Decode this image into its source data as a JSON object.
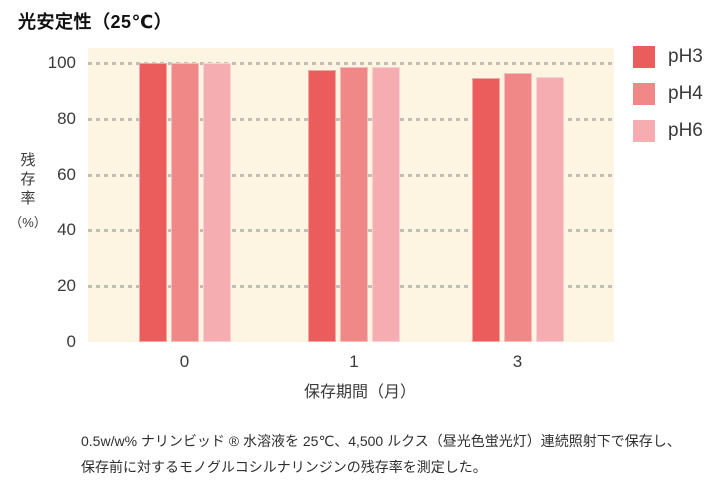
{
  "header": {
    "title": "光安定性（25℃）"
  },
  "chart_data": {
    "type": "bar",
    "title": "光安定性（25℃）",
    "categories": [
      "0",
      "1",
      "3"
    ],
    "series": [
      {
        "name": "pH3",
        "color": "#EB5D5D",
        "values": [
          100,
          97.5,
          94.5
        ]
      },
      {
        "name": "pH4",
        "color": "#F18888",
        "values": [
          100,
          98.5,
          96.5
        ]
      },
      {
        "name": "pH6",
        "color": "#F5ADB2",
        "values": [
          100,
          98.5,
          95
        ]
      }
    ],
    "xlabel": "保存期間（月）",
    "ylabel": "残存率（%）",
    "ylim": [
      0,
      100
    ],
    "yticks": [
      0,
      20,
      40,
      60,
      80,
      100
    ],
    "grid": "horizontal-dashed",
    "gridline_color": "#AEACA6",
    "plot_background": "#FDF5E2",
    "legend_position": "right-top"
  },
  "axes": {
    "y_title_chars": [
      "残",
      "存",
      "率"
    ],
    "y_unit": "（%）",
    "x_title": "保存期間（月）"
  },
  "legend": [
    {
      "label": "pH3",
      "color": "#EB5D5D"
    },
    {
      "label": "pH4",
      "color": "#F18888"
    },
    {
      "label": "pH6",
      "color": "#F5ADB2"
    }
  ],
  "caption": {
    "line1": "0.5w/w% ナリンビッド ® 水溶液を 25℃、4,500 ルクス（昼光色蛍光灯）連続照射下で保存し、",
    "line2": "保存前に対するモノグルコシルナリンジンの残存率を測定した。"
  }
}
